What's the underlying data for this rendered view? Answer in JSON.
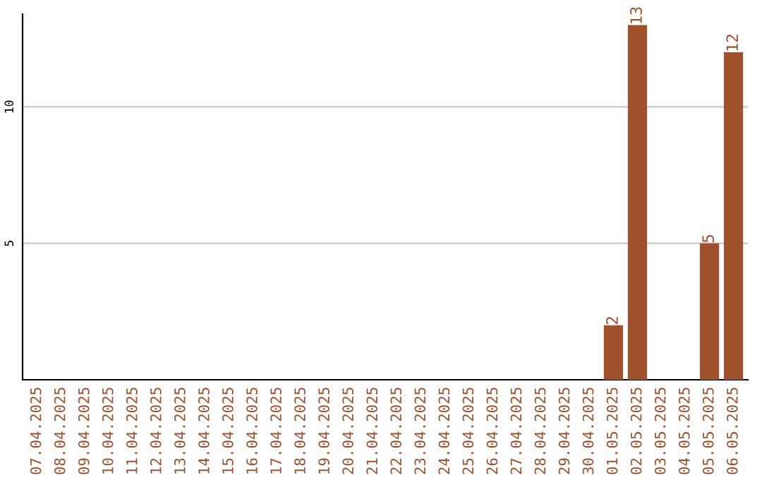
{
  "chart_data": {
    "type": "bar",
    "categories": [
      "07.04.2025",
      "08.04.2025",
      "09.04.2025",
      "10.04.2025",
      "11.04.2025",
      "12.04.2025",
      "13.04.2025",
      "14.04.2025",
      "15.04.2025",
      "16.04.2025",
      "17.04.2025",
      "18.04.2025",
      "19.04.2025",
      "20.04.2025",
      "21.04.2025",
      "22.04.2025",
      "23.04.2025",
      "24.04.2025",
      "25.04.2025",
      "26.04.2025",
      "27.04.2025",
      "28.04.2025",
      "29.04.2025",
      "30.04.2025",
      "01.05.2025",
      "02.05.2025",
      "03.05.2025",
      "04.05.2025",
      "05.05.2025",
      "06.05.2025"
    ],
    "values": [
      0,
      0,
      0,
      0,
      0,
      0,
      0,
      0,
      0,
      0,
      0,
      0,
      0,
      0,
      0,
      0,
      0,
      0,
      0,
      0,
      0,
      0,
      0,
      0,
      2,
      13,
      0,
      0,
      5,
      12
    ],
    "value_labels": [
      null,
      null,
      null,
      null,
      null,
      null,
      null,
      null,
      null,
      null,
      null,
      null,
      null,
      null,
      null,
      null,
      null,
      null,
      null,
      null,
      null,
      null,
      null,
      null,
      "2",
      "13",
      null,
      null,
      "5",
      "12"
    ],
    "color": "#a0522d",
    "ylim": [
      0,
      13.4
    ],
    "yticks": [
      5,
      10
    ],
    "grid": "y",
    "legend": false
  }
}
